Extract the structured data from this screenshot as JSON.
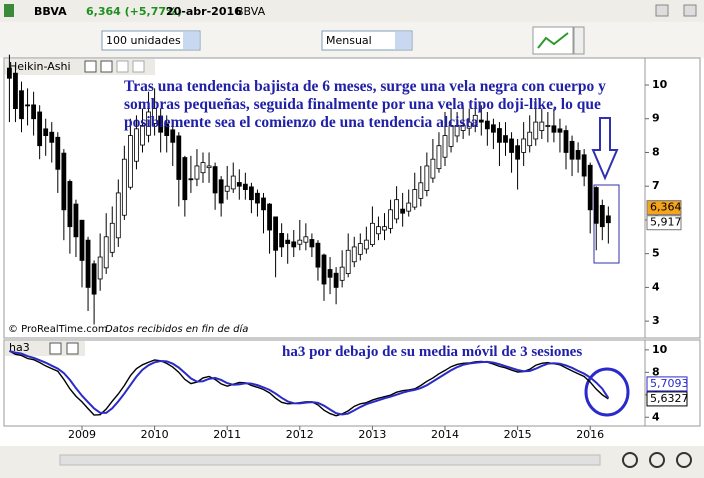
{
  "ui": {
    "symbol": "BBVA",
    "quote": "6,364 (+5,77%)",
    "date": "20-abr-2016",
    "symbol_name": "BBVA",
    "quantity": "100 unidades",
    "period": "Mensual",
    "panel_price": "Heikin-Ashi",
    "panel_indicator": "ha3",
    "copyright": "© ProRealTime.com",
    "data_note": "Datos recibidos en fin de día"
  },
  "chart_data": [
    {
      "type": "candlestick",
      "annotation": "Tras una tendencia bajista de 6 meses, surge una vela negra con cuerpo y sombras pequeñas, seguida finalmente por una vela tipo doji-like, lo que posiblemente sea el comienzo de una tendencia alcista",
      "up_color": "#ffffff",
      "down_color": "#000000",
      "open": [
        10.5,
        10.35,
        9.83,
        9.41,
        9.41,
        9.2,
        8.7,
        8.6,
        8.45,
        7.98,
        7.14,
        6.47,
        5.99,
        5.4,
        4.7,
        4.25,
        4.58,
        5.04,
        5.47,
        6.14,
        6.97,
        7.74,
        8.22,
        8.51,
        8.86,
        9.08,
        8.84,
        8.67,
        8.49,
        7.85,
        7.22,
        7.21,
        7.4,
        7.55,
        7.58,
        7.19,
        6.85,
        6.92,
        7.11,
        7.06,
        6.98,
        6.79,
        6.65,
        6.47,
        6.09,
        5.6,
        5.4,
        5.35,
        5.28,
        5.34,
        5.42,
        5.31,
        4.96,
        4.53,
        4.42,
        4.21,
        4.41,
        4.76,
        4.98,
        5.14,
        5.27,
        5.59,
        5.7,
        5.75,
        6.03,
        6.32,
        6.26,
        6.38,
        6.64,
        6.87,
        7.24,
        7.52,
        7.86,
        8.18,
        8.49,
        8.65,
        8.72,
        8.81,
        8.96,
        8.93,
        8.82,
        8.71,
        8.5,
        8.4,
        8.2,
        8.0,
        8.2,
        8.4,
        8.65,
        8.78,
        8.79,
        8.7,
        8.65,
        8.33,
        8.06,
        7.93,
        7.62,
        6.96,
        6.43,
        6.12
      ],
      "high": [
        10.9,
        10.6,
        10.1,
        9.9,
        9.8,
        9.4,
        9.0,
        8.9,
        8.6,
        8.1,
        7.2,
        6.6,
        6.0,
        5.5,
        4.8,
        5.6,
        6.2,
        6.4,
        7.2,
        8.2,
        9.0,
        9.1,
        9.3,
        9.8,
        9.9,
        9.3,
        9.1,
        8.9,
        8.6,
        7.9,
        7.9,
        8.1,
        8.0,
        8.0,
        7.7,
        7.3,
        7.6,
        7.7,
        7.5,
        7.4,
        7.1,
        6.9,
        6.8,
        6.5,
        6.1,
        5.9,
        5.6,
        5.7,
        6.0,
        5.9,
        5.6,
        5.4,
        5.0,
        4.9,
        4.6,
        5.1,
        5.6,
        5.5,
        5.6,
        5.8,
        6.4,
        6.1,
        6.2,
        6.6,
        7.0,
        6.8,
        6.9,
        7.4,
        7.6,
        8.0,
        8.4,
        8.6,
        9.2,
        9.3,
        9.2,
        9.4,
        9.3,
        9.5,
        9.4,
        9.2,
        9.0,
        8.9,
        8.9,
        8.6,
        8.4,
        8.9,
        9.1,
        9.6,
        9.3,
        9.2,
        9.3,
        9.0,
        8.8,
        8.5,
        8.3,
        8.1,
        7.7,
        7.0,
        6.6,
        6.4
      ],
      "low": [
        8.9,
        8.9,
        8.6,
        8.8,
        8.5,
        7.8,
        7.9,
        7.7,
        6.8,
        5.4,
        5.0,
        4.9,
        4.0,
        3.3,
        2.9,
        3.9,
        4.4,
        4.9,
        5.2,
        6.0,
        6.9,
        7.5,
        8.0,
        8.3,
        8.5,
        8.0,
        8.0,
        7.6,
        6.4,
        6.1,
        6.8,
        7.0,
        7.1,
        7.1,
        6.3,
        6.1,
        6.6,
        6.8,
        6.6,
        6.6,
        6.2,
        6.1,
        5.6,
        5.0,
        4.3,
        4.9,
        4.7,
        4.9,
        5.1,
        5.1,
        4.9,
        4.2,
        3.6,
        3.8,
        3.5,
        4.0,
        4.3,
        4.6,
        4.8,
        5.0,
        5.2,
        5.4,
        5.4,
        5.6,
        5.9,
        5.8,
        6.1,
        6.3,
        6.4,
        6.7,
        7.1,
        7.4,
        7.6,
        8.0,
        8.3,
        8.4,
        8.5,
        8.6,
        8.5,
        8.2,
        8.1,
        7.6,
        7.9,
        7.4,
        6.9,
        7.6,
        8.0,
        8.2,
        8.4,
        8.3,
        8.3,
        8.0,
        7.5,
        7.3,
        7.4,
        7.0,
        5.6,
        5.1,
        5.4,
        5.3
      ],
      "close": [
        10.2,
        9.3,
        9.0,
        9.4,
        9.0,
        8.2,
        8.5,
        8.3,
        7.5,
        6.3,
        5.8,
        5.5,
        4.8,
        4.0,
        3.8,
        4.9,
        5.5,
        5.9,
        6.8,
        7.8,
        8.5,
        8.7,
        8.8,
        9.2,
        9.3,
        8.6,
        8.5,
        8.3,
        7.2,
        6.6,
        7.2,
        7.6,
        7.7,
        7.6,
        6.8,
        6.5,
        7.0,
        7.3,
        7.0,
        6.9,
        6.6,
        6.5,
        6.3,
        5.7,
        5.1,
        5.2,
        5.3,
        5.2,
        5.4,
        5.5,
        5.2,
        4.6,
        4.1,
        4.3,
        4.0,
        4.6,
        5.1,
        5.2,
        5.3,
        5.4,
        5.9,
        5.8,
        5.8,
        6.3,
        6.6,
        6.2,
        6.5,
        6.9,
        7.1,
        7.6,
        7.8,
        8.2,
        8.5,
        8.8,
        8.8,
        8.8,
        8.9,
        9.1,
        8.9,
        8.7,
        8.6,
        8.3,
        8.3,
        8.0,
        7.8,
        8.4,
        8.6,
        8.9,
        8.9,
        8.8,
        8.6,
        8.6,
        8.0,
        7.8,
        7.8,
        7.3,
        6.3,
        5.9,
        5.8,
        5.917
      ],
      "price_labels": [
        {
          "value": 6.364,
          "label": "6,364",
          "color": "#f7a41d"
        },
        {
          "value": 5.917,
          "label": "5,917",
          "color": "#ffffff"
        }
      ],
      "ylim": [
        2.5,
        10.8
      ],
      "yticks": [
        3,
        4,
        5,
        6,
        7,
        8,
        9,
        10
      ],
      "grid": false
    },
    {
      "type": "line",
      "annotation": "ha3 por debajo de su media móvil de 3 sesiones",
      "categories": [
        null,
        null,
        null,
        null,
        null,
        null,
        null,
        null,
        null,
        null,
        null,
        null,
        "2009",
        null,
        null,
        null,
        null,
        null,
        null,
        null,
        null,
        null,
        null,
        null,
        "2010",
        null,
        null,
        null,
        null,
        null,
        null,
        null,
        null,
        null,
        null,
        null,
        "2011",
        null,
        null,
        null,
        null,
        null,
        null,
        null,
        null,
        null,
        null,
        null,
        "2012",
        null,
        null,
        null,
        null,
        null,
        null,
        null,
        null,
        null,
        null,
        null,
        "2013",
        null,
        null,
        null,
        null,
        null,
        null,
        null,
        null,
        null,
        null,
        null,
        "2014",
        null,
        null,
        null,
        null,
        null,
        null,
        null,
        null,
        null,
        null,
        null,
        "2015",
        null,
        null,
        null,
        null,
        null,
        null,
        null,
        null,
        null,
        null,
        null,
        "2016",
        null,
        null,
        null
      ],
      "series": [
        {
          "color": "#000000",
          "values": [
            9.9,
            9.6,
            9.5,
            9.23,
            9.13,
            8.87,
            8.57,
            8.33,
            8.1,
            7.37,
            6.53,
            5.87,
            5.37,
            4.77,
            4.2,
            4.23,
            4.73,
            5.43,
            6.07,
            6.83,
            7.7,
            8.33,
            8.67,
            8.9,
            9.1,
            9.03,
            8.8,
            8.47,
            8.0,
            7.37,
            7.0,
            7.13,
            7.5,
            7.63,
            7.37,
            6.97,
            6.77,
            6.93,
            7.1,
            7.07,
            6.83,
            6.67,
            6.47,
            6.17,
            5.7,
            5.33,
            5.2,
            5.23,
            5.3,
            5.37,
            5.37,
            5.1,
            4.63,
            4.33,
            4.13,
            4.3,
            4.57,
            4.97,
            5.2,
            5.3,
            5.53,
            5.7,
            5.83,
            5.97,
            6.23,
            6.37,
            6.43,
            6.53,
            6.83,
            7.2,
            7.5,
            7.87,
            8.17,
            8.5,
            8.7,
            8.8,
            8.83,
            8.93,
            8.97,
            8.9,
            8.73,
            8.53,
            8.4,
            8.2,
            8.03,
            8.07,
            8.27,
            8.63,
            8.8,
            8.87,
            8.77,
            8.67,
            8.4,
            8.13,
            7.87,
            7.63,
            7.13,
            6.5,
            6.0,
            5.6327
          ],
          "value_label": "5,6327"
        },
        {
          "color": "#2b2bc8",
          "values": [
            9.9,
            9.75,
            9.67,
            9.44,
            9.29,
            9.08,
            8.86,
            8.59,
            8.33,
            7.93,
            7.33,
            6.59,
            5.92,
            5.34,
            4.78,
            4.4,
            4.39,
            4.8,
            5.41,
            6.11,
            6.87,
            7.62,
            8.23,
            8.63,
            8.89,
            9.01,
            8.98,
            8.77,
            8.42,
            7.95,
            7.46,
            7.17,
            7.21,
            7.42,
            7.5,
            7.32,
            7.04,
            6.89,
            6.93,
            7.03,
            7.0,
            6.86,
            6.66,
            6.44,
            6.11,
            5.73,
            5.41,
            5.25,
            5.24,
            5.3,
            5.35,
            5.28,
            5.03,
            4.69,
            4.36,
            4.25,
            4.33,
            4.61,
            4.91,
            5.16,
            5.34,
            5.51,
            5.69,
            5.83,
            6.01,
            6.19,
            6.34,
            6.44,
            6.6,
            6.85,
            7.18,
            7.52,
            7.85,
            8.18,
            8.46,
            8.67,
            8.78,
            8.85,
            8.91,
            8.93,
            8.87,
            8.72,
            8.55,
            8.38,
            8.21,
            8.1,
            8.12,
            8.32,
            8.57,
            8.77,
            8.81,
            8.77,
            8.61,
            8.4,
            8.13,
            7.88,
            7.54,
            7.09,
            6.54,
            5.7093
          ],
          "value_label": "5,7093"
        }
      ],
      "ylim": [
        3.4,
        10.7
      ],
      "yticks": [
        4,
        6,
        8,
        10
      ],
      "grid": false
    }
  ]
}
